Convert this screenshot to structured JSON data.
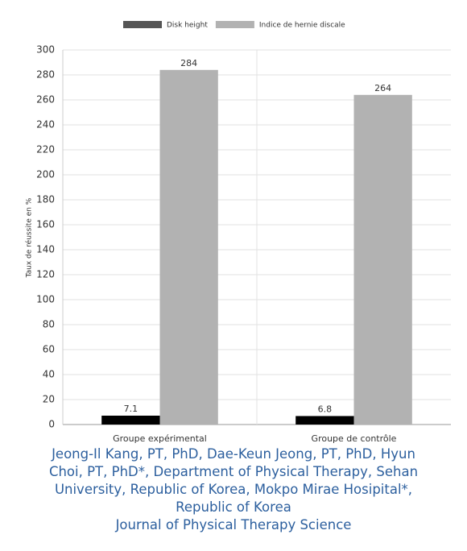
{
  "chart_data": {
    "type": "bar",
    "y_label": "Taux de réussite en %",
    "categories": [
      "Groupe expérimental",
      "Groupe de contrôle"
    ],
    "series": [
      {
        "name": "Disk height",
        "color": "#000000",
        "values": [
          7.1,
          6.8
        ]
      },
      {
        "name": "Indice de hernie discale",
        "color": "#b2b2b2",
        "values": [
          284,
          264
        ]
      }
    ],
    "ylim": [
      0,
      300
    ],
    "yticks": [
      0,
      20,
      40,
      60,
      80,
      100,
      120,
      140,
      160,
      180,
      200,
      220,
      240,
      260,
      280,
      300
    ],
    "grid": true,
    "legend": "top"
  },
  "caption": [
    "Jeong-Il Kang, PT, PhD, Dae-Keun Jeong, PT, PhD, Hyun",
    "Choi, PT, PhD*, Department of Physical Therapy, Sehan",
    "University, Republic of Korea, Mokpo Mirae Hosipital*,",
    "Republic of Korea",
    "Journal of Physical Therapy Science"
  ]
}
